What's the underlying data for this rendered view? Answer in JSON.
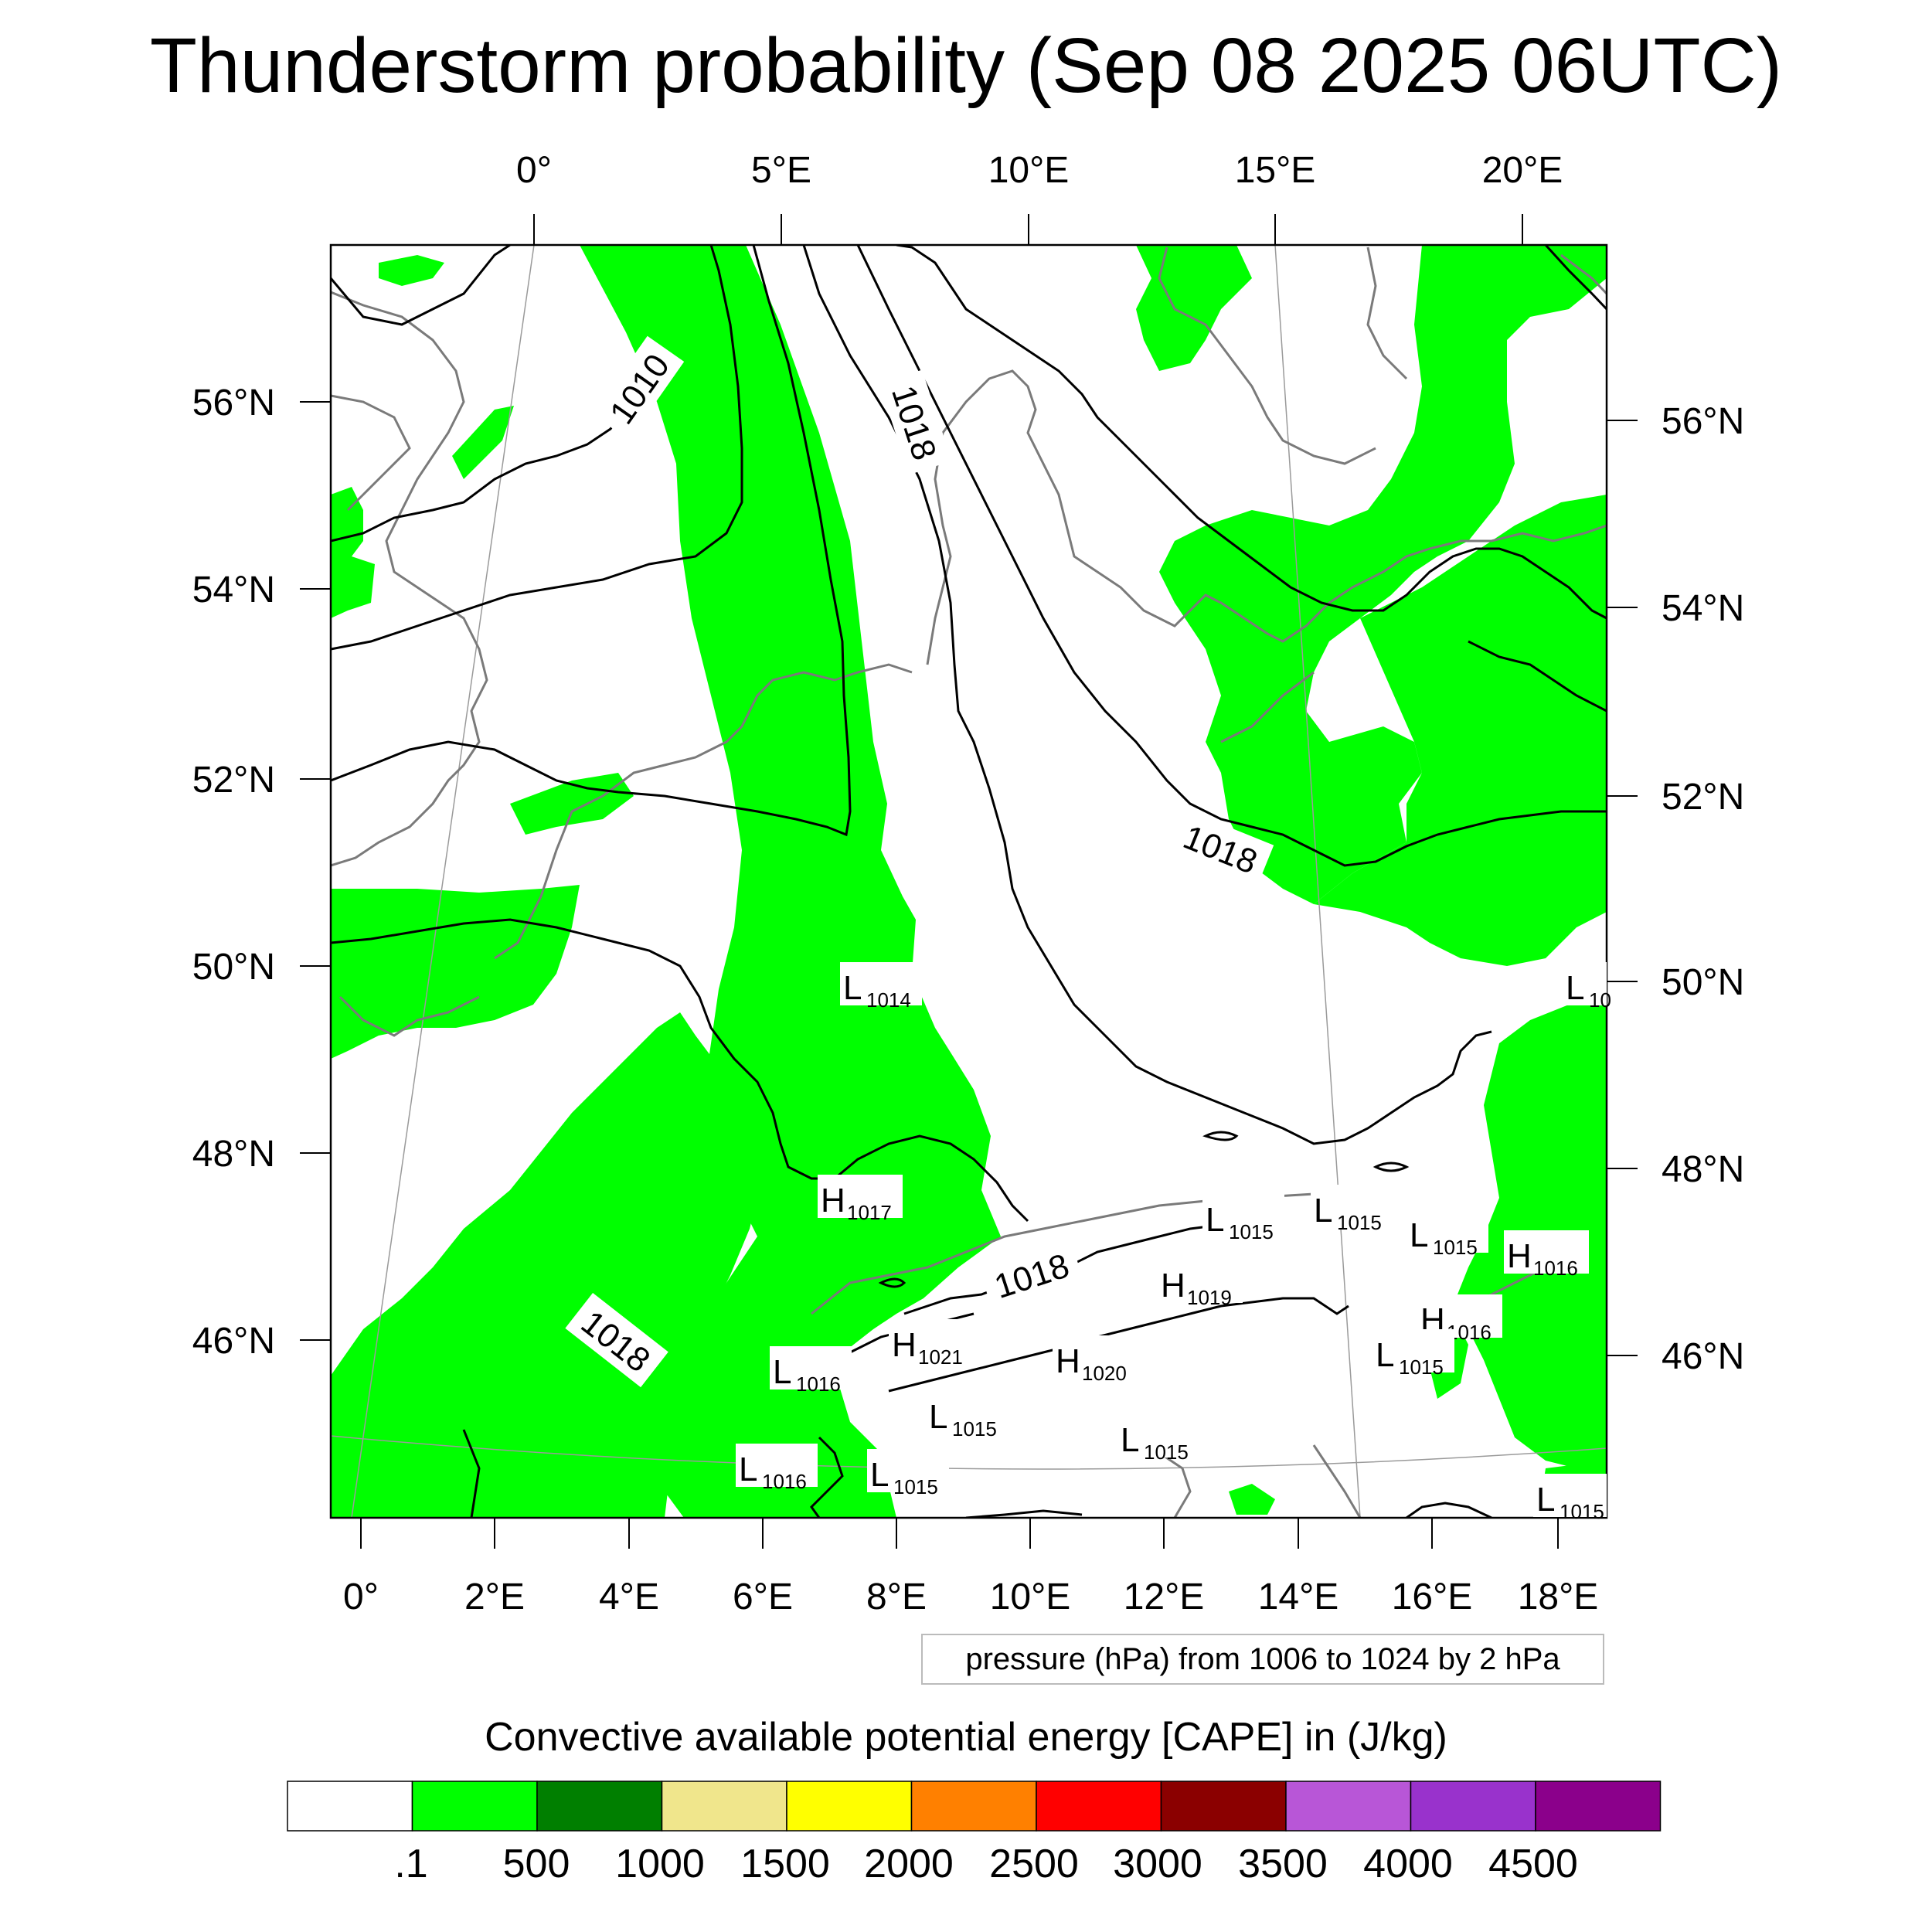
{
  "title": "Thunderstorm probability (Sep 08 2025 06UTC)",
  "axes": {
    "top_lon_labels": [
      "0°",
      "5°E",
      "10°E",
      "15°E",
      "20°E"
    ],
    "bottom_lon_labels": [
      "0°",
      "2°E",
      "4°E",
      "6°E",
      "8°E",
      "10°E",
      "12°E",
      "14°E",
      "16°E",
      "18°E"
    ],
    "left_lat_labels": [
      "56°N",
      "54°N",
      "52°N",
      "50°N",
      "48°N",
      "46°N"
    ],
    "right_lat_labels": [
      "56°N",
      "54°N",
      "52°N",
      "50°N",
      "48°N",
      "46°N"
    ]
  },
  "pressure_note": "pressure (hPa) from 1006 to 1024 by 2 hPa",
  "contour_labels": [
    "1010",
    "1018",
    "1018",
    "1018",
    "1018"
  ],
  "pressure_centers": [
    {
      "type": "L",
      "value": "1014"
    },
    {
      "type": "L",
      "value": "10"
    },
    {
      "type": "H",
      "value": "1017"
    },
    {
      "type": "L",
      "value": "1015"
    },
    {
      "type": "L",
      "value": "1015"
    },
    {
      "type": "L",
      "value": "1015"
    },
    {
      "type": "H",
      "value": "1016"
    },
    {
      "type": "H",
      "value": "1019"
    },
    {
      "type": "H",
      "value": "1016"
    },
    {
      "type": "H",
      "value": "1021"
    },
    {
      "type": "H",
      "value": "1020"
    },
    {
      "type": "L",
      "value": "1015"
    },
    {
      "type": "L",
      "value": "1016"
    },
    {
      "type": "L",
      "value": "1015"
    },
    {
      "type": "L",
      "value": "1015"
    },
    {
      "type": "L",
      "value": "1016"
    },
    {
      "type": "L",
      "value": "1015"
    },
    {
      "type": "L",
      "value": "1015"
    }
  ],
  "colorbar": {
    "title": "Convective available potential energy [CAPE] in (J/kg)",
    "labels": [
      ".1",
      "500",
      "1000",
      "1500",
      "2000",
      "2500",
      "3000",
      "3500",
      "4000",
      "4500"
    ],
    "colors": [
      "#ffffff",
      "#00ff00",
      "#007f00",
      "#f0e68c",
      "#ffff00",
      "#ff8000",
      "#ff0000",
      "#8b0000",
      "#b856d7",
      "#9932cc",
      "#8b008b"
    ]
  },
  "field_color": "#00ff00"
}
